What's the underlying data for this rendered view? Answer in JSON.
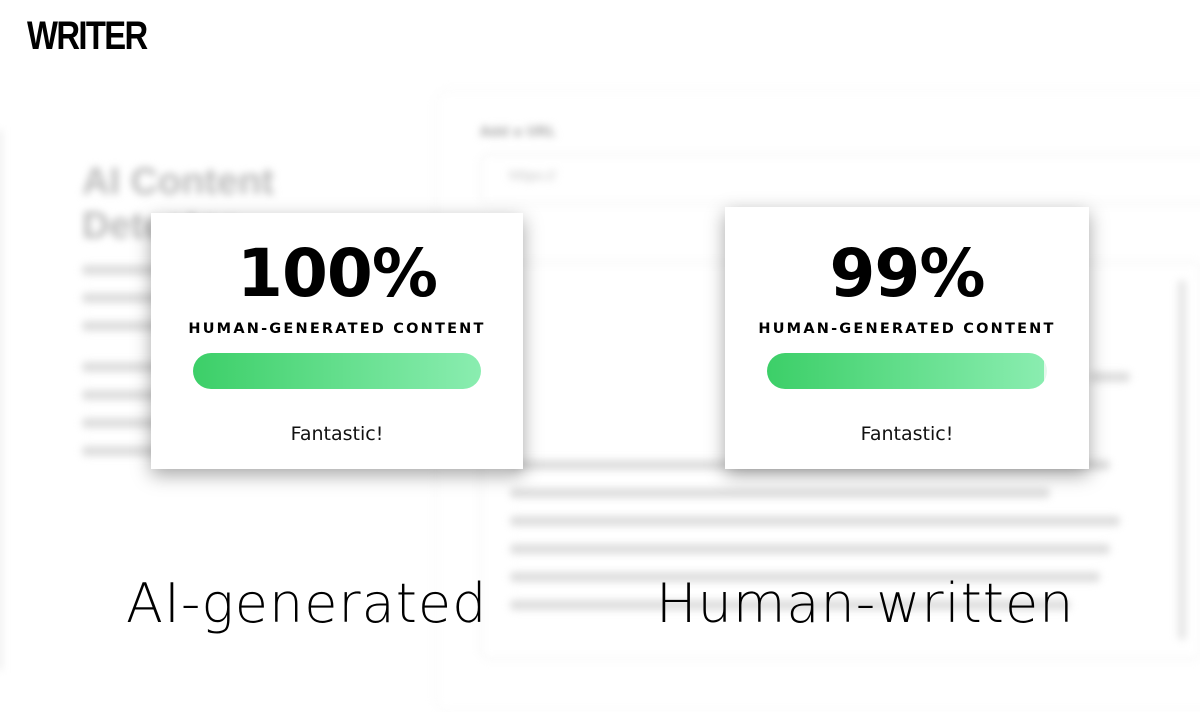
{
  "brand": {
    "logo": "WRITER"
  },
  "background": {
    "page_title": "AI Content Detector",
    "url_label": "Add a URL",
    "url_placeholder": "https://"
  },
  "cards": [
    {
      "percent": "100%",
      "label": "HUMAN-GENERATED CONTENT",
      "progress_percent": 100,
      "verdict": "Fantastic!"
    },
    {
      "percent": "99%",
      "label": "HUMAN-GENERATED CONTENT",
      "progress_percent": 99,
      "verdict": "Fantastic!"
    }
  ],
  "captions": [
    "AI-generated",
    "Human-written"
  ],
  "colors": {
    "bar_start": "#3ccf68",
    "bar_end": "#8aedb0"
  }
}
